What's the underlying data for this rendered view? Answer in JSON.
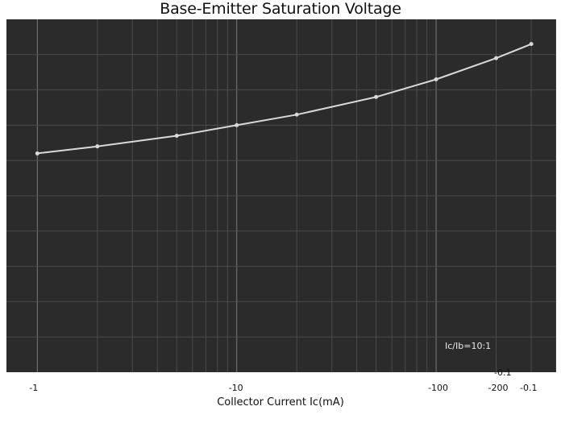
{
  "chart_data": {
    "type": "line",
    "title": "Base-Emitter Saturation Voltage",
    "xlabel": "Collector Current   Ic(mA)",
    "ylabel": "",
    "x_scale": "log",
    "xlim": [
      0.7,
      400
    ],
    "ylim": [
      0,
      1.0
    ],
    "x_ticks": [
      {
        "value": 1,
        "label": "-1"
      },
      {
        "value": 10,
        "label": "-10"
      },
      {
        "value": 100,
        "label": "-100"
      },
      {
        "value": 200,
        "label": "-200"
      }
    ],
    "y_ticks": [
      {
        "value": 0.1,
        "label": "-0.1"
      },
      {
        "value": 0.1,
        "label": "-0.1"
      }
    ],
    "annotations": [
      "Ic/Ib=10:1"
    ],
    "grid": true,
    "series": [
      {
        "color": "#d9d9d9",
        "x": [
          1,
          2,
          5,
          10,
          20,
          50,
          100,
          200,
          300
        ],
        "y": [
          0.62,
          0.64,
          0.67,
          0.7,
          0.73,
          0.78,
          0.83,
          0.89,
          0.93
        ]
      }
    ]
  }
}
